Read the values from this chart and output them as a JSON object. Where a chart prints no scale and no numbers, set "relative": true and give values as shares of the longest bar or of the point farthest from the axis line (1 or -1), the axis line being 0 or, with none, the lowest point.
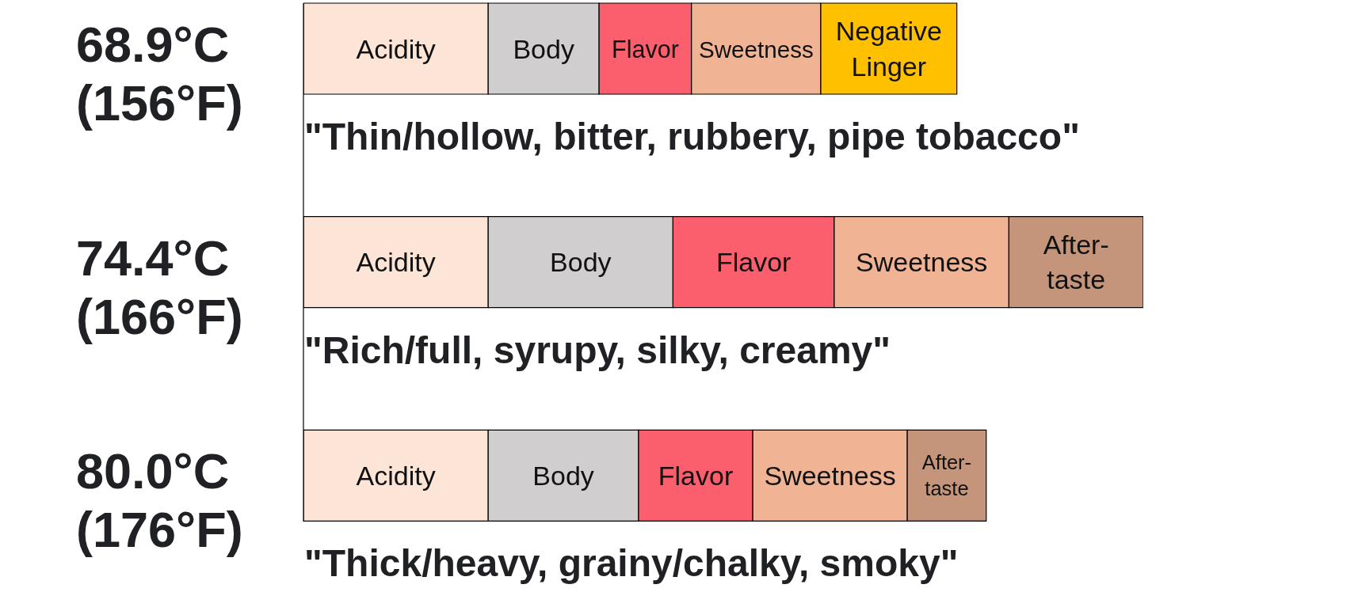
{
  "chart_data": {
    "type": "bar",
    "orientation": "horizontal",
    "stacked": true,
    "relative": true,
    "categories": [
      "68.9°C (156°F)",
      "74.4°C (166°F)",
      "80.0°C (176°F)"
    ],
    "series": [
      {
        "name": "Acidity",
        "color": "#fce4d6",
        "values": [
          0.22,
          0.22,
          0.22
        ]
      },
      {
        "name": "Body",
        "color": "#d0cece",
        "values": [
          0.132,
          0.22,
          0.179
        ]
      },
      {
        "name": "Flavor",
        "color": "#fb5f6d",
        "values": [
          0.11,
          0.192,
          0.136
        ]
      },
      {
        "name": "Sweetness",
        "color": "#f0b495",
        "values": [
          0.154,
          0.208,
          0.184
        ]
      },
      {
        "name": "Negative Linger",
        "color": "#ffc000",
        "values": [
          0.162,
          null,
          null
        ]
      },
      {
        "name": "After-taste",
        "color": "#c4957a",
        "values": [
          null,
          0.16,
          0.094
        ]
      }
    ],
    "annotations": [
      "\"Thin/hollow, bitter, rubbery, pipe tobacco\"",
      "\"Rich/full, syrupy, silky, creamy\"",
      "\"Thick/heavy, grainy/chalky, smoky\""
    ]
  }
}
